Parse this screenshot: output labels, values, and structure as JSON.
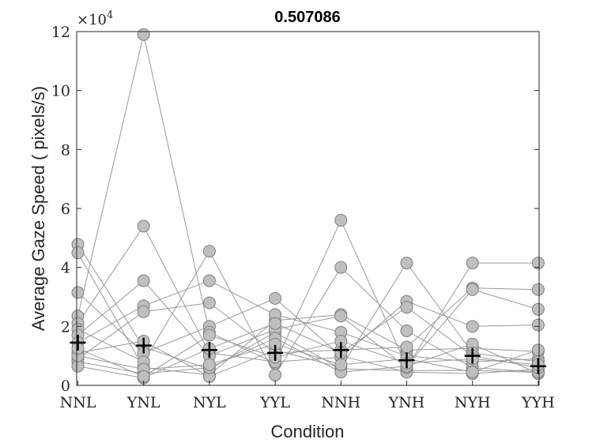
{
  "chart_data": {
    "type": "line",
    "title": "0.507086",
    "xlabel": "Condition",
    "ylabel": "Average Gaze Speed ( pixels/s)",
    "categories": [
      "NNL",
      "YNL",
      "NYL",
      "YYL",
      "NNH",
      "YNH",
      "NYH",
      "YYH"
    ],
    "ylim": [
      0,
      120000
    ],
    "yticks": [
      0,
      20000,
      40000,
      60000,
      80000,
      100000,
      120000
    ],
    "ytick_labels": [
      "0",
      "2",
      "4",
      "6",
      "8",
      "10",
      "12"
    ],
    "y_multiplier": {
      "base": "×10",
      "exponent": "4"
    },
    "grid": false,
    "series_color": "#999999",
    "marker_fill": "#bfbfbf",
    "series": [
      {
        "values": [
          47800,
          13000,
          5500,
          18000,
          5600,
          5000,
          5100,
          4400
        ]
      },
      {
        "values": [
          45000,
          6000,
          3500,
          22000,
          24000,
          12000,
          12500,
          11500
        ]
      },
      {
        "values": [
          31500,
          11000,
          20000,
          29500,
          10000,
          4500,
          4000,
          5500
        ]
      },
      {
        "values": [
          23500,
          119000,
          18000,
          7500,
          56000,
          6500,
          14000,
          4000
        ]
      },
      {
        "values": [
          21000,
          54000,
          11000,
          8000,
          9500,
          28500,
          20000,
          20500
        ]
      },
      {
        "values": [
          19000,
          8000,
          45500,
          3500,
          40000,
          18500,
          6000,
          4500
        ]
      },
      {
        "values": [
          17000,
          35500,
          10000,
          19000,
          23500,
          6000,
          41500,
          41500
        ]
      },
      {
        "values": [
          14500,
          27000,
          35500,
          24000,
          18000,
          10000,
          8000,
          9000
        ]
      },
      {
        "values": [
          11000,
          15000,
          3000,
          12000,
          6000,
          41500,
          11000,
          8000
        ]
      },
      {
        "values": [
          9000,
          25000,
          28000,
          11000,
          12000,
          13000,
          33000,
          32500
        ]
      },
      {
        "values": [
          8000,
          4000,
          6000,
          16000,
          4500,
          6500,
          32500,
          25800
        ]
      },
      {
        "values": [
          6500,
          2500,
          12500,
          21000,
          11000,
          26500,
          10000,
          6000
        ]
      },
      {
        "values": [
          10000,
          5500,
          7000,
          14000,
          7000,
          9000,
          4500,
          12000
        ]
      },
      {
        "values": [
          12500,
          3000,
          17000,
          9500,
          15000,
          7500,
          9000,
          7000
        ]
      }
    ],
    "means": {
      "name": "mean",
      "color": "#000000",
      "values": [
        14500,
        13500,
        12000,
        11000,
        12000,
        8500,
        10000,
        6500
      ]
    }
  }
}
